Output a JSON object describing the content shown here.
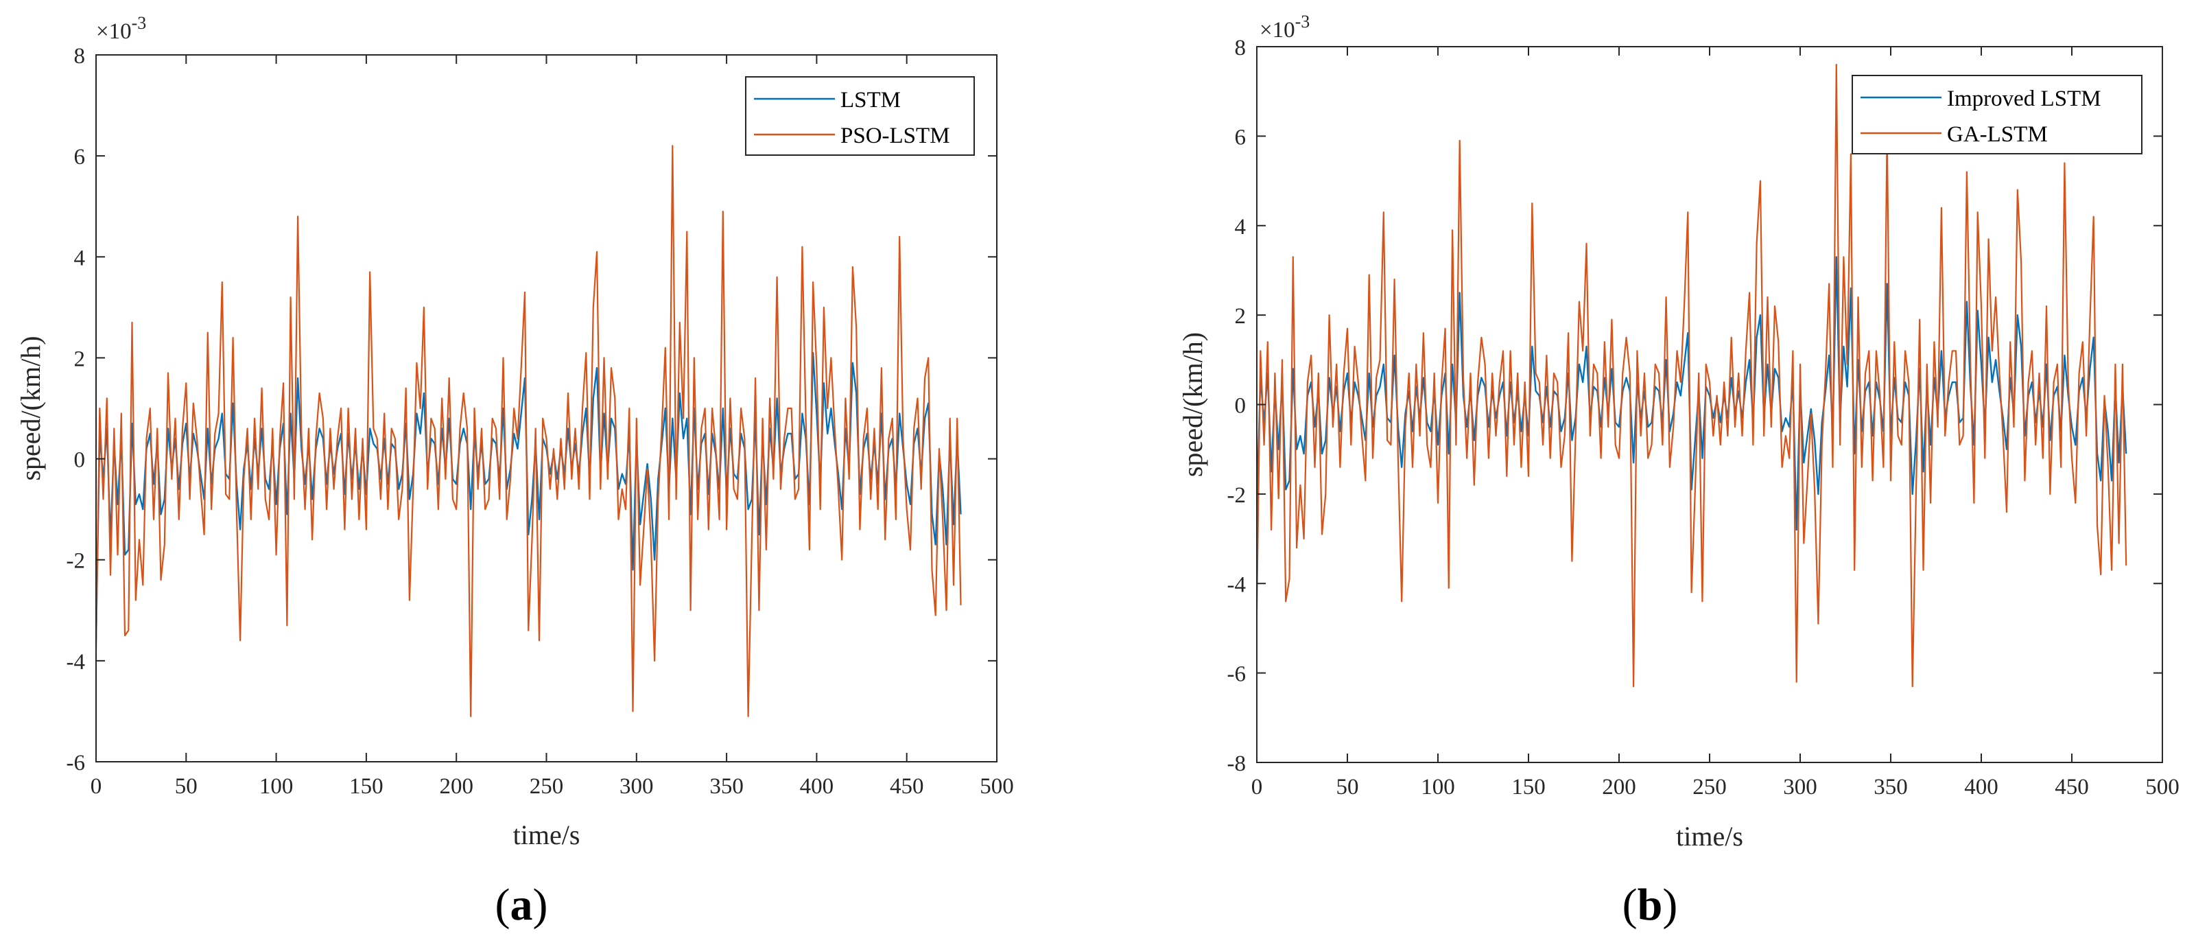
{
  "colors": {
    "series1": "#0072BD",
    "series2": "#D95319",
    "axis": "#262626"
  },
  "chart_data": [
    {
      "type": "line",
      "panel_label": "a",
      "xlabel": "time/s",
      "ylabel": "speed/(km/h)",
      "y_multiplier": "×10",
      "y_multiplier_exp": "-3",
      "xlim": [
        0,
        500
      ],
      "ylim": [
        -6,
        8
      ],
      "xticks": [
        0,
        50,
        100,
        150,
        200,
        250,
        300,
        350,
        400,
        450,
        500
      ],
      "xtick_labels": [
        "0",
        "50",
        "100",
        "150",
        "200",
        "250",
        "300",
        "350",
        "400",
        "450",
        "500"
      ],
      "yticks": [
        -6,
        -4,
        -2,
        0,
        2,
        4,
        6,
        8
      ],
      "ytick_labels": [
        "-6",
        "-4",
        "-2",
        "0",
        "2",
        "4",
        "6",
        "8"
      ],
      "legend": "top-right",
      "series": [
        {
          "name": "LSTM",
          "color": "#0072BD",
          "x_step": 2,
          "x_start": 0,
          "values": [
            -3.6,
            0.5,
            -0.4,
            0.6,
            -1.6,
            0.3,
            -0.9,
            0.4,
            -1.9,
            -1.8,
            0.7,
            -0.9,
            -0.7,
            -1.0,
            0.2,
            0.5,
            -0.5,
            0.3,
            -1.1,
            -0.8,
            0.6,
            -0.2,
            0.4,
            -0.6,
            0.3,
            0.7,
            -0.4,
            0.5,
            0.2,
            -0.3,
            -0.8,
            0.6,
            -0.5,
            0.2,
            0.4,
            0.9,
            -0.3,
            -0.4,
            1.1,
            -0.5,
            -1.4,
            -0.2,
            0.3,
            -0.6,
            0.4,
            -0.3,
            0.6,
            -0.4,
            -0.6,
            0.3,
            -0.9,
            0.2,
            0.7,
            -1.1,
            0.9,
            -0.4,
            1.6,
            0.2,
            -0.5,
            0.3,
            -0.8,
            0.2,
            0.6,
            0.4,
            -0.5,
            0.3,
            -0.3,
            0.2,
            0.5,
            -0.7,
            0.5,
            -0.4,
            0.3,
            -0.6,
            0.2,
            -0.7,
            0.6,
            0.3,
            0.2,
            -0.4,
            0.4,
            -0.5,
            0.3,
            0.2,
            -0.6,
            -0.3,
            0.7,
            -0.8,
            -0.3,
            0.9,
            0.5,
            1.3,
            -0.3,
            0.4,
            0.3,
            -0.5,
            0.6,
            -0.2,
            0.8,
            -0.4,
            -0.5,
            0.3,
            0.6,
            0.3,
            -1.0,
            0.5,
            -0.3,
            0.3,
            -0.5,
            -0.4,
            0.4,
            0.3,
            -0.4,
            1.0,
            -0.6,
            -0.2,
            0.5,
            0.2,
            0.9,
            1.6,
            -1.5,
            -0.8,
            0.3,
            -1.2,
            0.4,
            0.2,
            -0.3,
            0.1,
            -0.4,
            0.2,
            -0.3,
            0.6,
            -0.2,
            0.3,
            -0.3,
            0.5,
            1.0,
            -0.4,
            1.2,
            1.8,
            -0.3,
            0.9,
            -0.2,
            0.8,
            0.6,
            -0.6,
            -0.3,
            -0.5,
            0.5,
            -2.2,
            0.4,
            -1.3,
            -0.7,
            -0.1,
            -0.8,
            -2.0,
            -0.4,
            0.3,
            1.0,
            -0.6,
            0.8,
            -0.4,
            1.3,
            0.4,
            0.8,
            -1.1,
            1.0,
            -0.6,
            0.3,
            0.5,
            -0.7,
            0.5,
            0.1,
            -0.6,
            1.0,
            -0.7,
            0.6,
            -0.3,
            -0.4,
            0.5,
            0.2,
            -1.0,
            -0.8,
            0.8,
            -1.5,
            0.4,
            -0.9,
            0.6,
            -0.2,
            1.2,
            -0.3,
            0.2,
            0.5,
            0.5,
            -0.4,
            -0.3,
            0.9,
            0.4,
            -0.9,
            2.1,
            0.9,
            -0.5,
            1.5,
            0.5,
            1.0,
            0.3,
            -0.3,
            -1.0,
            0.6,
            -0.2,
            1.9,
            1.3,
            -0.7,
            0.2,
            0.5,
            -0.4,
            0.3,
            -0.5,
            0.9,
            -0.8,
            0.2,
            0.4,
            -0.6,
            0.9,
            0.2,
            -0.5,
            -0.9,
            0.3,
            0.6,
            -0.3,
            0.8,
            1.1,
            -1.1,
            -1.7,
            0.1,
            -0.6,
            -1.7,
            0.4,
            -1.3,
            0.4,
            -1.1
          ]
        },
        {
          "name": "PSO-LSTM",
          "color": "#D95319",
          "x_step": 2,
          "x_start": 0,
          "values": [
            -3.8,
            1.0,
            -0.8,
            1.2,
            -2.3,
            0.6,
            -1.9,
            0.9,
            -3.5,
            -3.4,
            2.7,
            -2.8,
            -1.6,
            -2.5,
            0.4,
            1.0,
            -1.2,
            0.6,
            -2.4,
            -1.7,
            1.7,
            -0.4,
            0.8,
            -1.2,
            0.6,
            1.5,
            -0.8,
            1.1,
            0.4,
            -0.6,
            -1.5,
            2.5,
            -1.0,
            0.5,
            0.9,
            3.5,
            -0.7,
            -0.8,
            2.4,
            -1.0,
            -3.6,
            -0.4,
            0.6,
            -1.2,
            0.8,
            -0.6,
            1.4,
            -0.8,
            -1.2,
            0.6,
            -1.9,
            0.4,
            1.5,
            -3.3,
            3.2,
            -0.8,
            4.8,
            0.5,
            -1.0,
            0.6,
            -1.6,
            0.4,
            1.3,
            0.8,
            -1.0,
            0.6,
            -0.6,
            0.4,
            1.0,
            -1.4,
            1.0,
            -0.8,
            0.6,
            -1.2,
            0.4,
            -1.4,
            3.7,
            0.6,
            0.4,
            -0.8,
            0.9,
            -1.0,
            0.6,
            0.4,
            -1.2,
            -0.6,
            1.4,
            -2.8,
            -0.6,
            1.9,
            1.0,
            3.0,
            -0.6,
            0.8,
            0.6,
            -1.0,
            1.2,
            -0.4,
            1.6,
            -0.8,
            -1.0,
            0.6,
            1.3,
            0.6,
            -5.1,
            1.0,
            -0.6,
            0.6,
            -1.0,
            -0.8,
            0.8,
            0.6,
            -0.8,
            2.0,
            -1.2,
            -0.4,
            1.0,
            0.4,
            1.8,
            3.3,
            -3.4,
            -1.6,
            0.6,
            -3.6,
            0.8,
            0.4,
            -0.6,
            0.2,
            -0.8,
            0.4,
            -0.6,
            1.3,
            -0.4,
            0.6,
            -0.6,
            1.0,
            2.1,
            -0.8,
            3.0,
            4.1,
            -0.6,
            2.0,
            -0.4,
            1.8,
            1.2,
            -1.2,
            -0.6,
            -1.0,
            1.0,
            -5.0,
            0.8,
            -2.5,
            -1.4,
            -0.2,
            -1.6,
            -4.0,
            -0.8,
            0.6,
            2.2,
            -1.2,
            6.2,
            -0.8,
            2.7,
            0.8,
            4.5,
            -3.0,
            2.0,
            -1.2,
            0.6,
            1.0,
            -1.4,
            1.0,
            0.2,
            -1.2,
            4.9,
            -1.4,
            1.2,
            -0.6,
            -0.8,
            1.0,
            0.4,
            -5.1,
            -1.6,
            1.6,
            -3.0,
            0.8,
            -1.8,
            1.2,
            -0.4,
            3.6,
            -0.6,
            0.4,
            1.0,
            1.0,
            -0.8,
            -0.6,
            4.2,
            0.8,
            -1.8,
            3.5,
            1.8,
            -1.0,
            3.0,
            1.0,
            2.0,
            0.6,
            -0.6,
            -2.0,
            1.2,
            -0.4,
            3.8,
            2.6,
            -1.4,
            0.4,
            1.0,
            -0.8,
            0.6,
            -1.0,
            1.8,
            -1.6,
            0.4,
            0.8,
            -1.2,
            4.4,
            0.4,
            -1.0,
            -1.8,
            0.6,
            1.2,
            -0.6,
            1.6,
            2.0,
            -2.2,
            -3.1,
            0.2,
            -1.2,
            -3.0,
            0.8,
            -2.5,
            0.8,
            -2.9
          ]
        }
      ]
    },
    {
      "type": "line",
      "panel_label": "b",
      "xlabel": "time/s",
      "ylabel": "speed/(km/h)",
      "y_multiplier": "×10",
      "y_multiplier_exp": "-3",
      "xlim": [
        0,
        500
      ],
      "ylim": [
        -8,
        8
      ],
      "xticks": [
        0,
        50,
        100,
        150,
        200,
        250,
        300,
        350,
        400,
        450,
        500
      ],
      "xtick_labels": [
        "0",
        "50",
        "100",
        "150",
        "200",
        "250",
        "300",
        "350",
        "400",
        "450",
        "500"
      ],
      "yticks": [
        -8,
        -6,
        -4,
        -2,
        0,
        2,
        4,
        6,
        8
      ],
      "ytick_labels": [
        "-8",
        "-6",
        "-4",
        "-2",
        "0",
        "2",
        "4",
        "6",
        "8"
      ],
      "legend": "top-right",
      "series": [
        {
          "name": "Improved LSTM",
          "color": "#0072BD",
          "x_step": 2,
          "x_start": 0,
          "values": [
            -2.3,
            0.6,
            -0.4,
            0.7,
            -1.5,
            0.3,
            -1.0,
            0.5,
            -1.9,
            -1.7,
            0.8,
            -1.0,
            -0.7,
            -1.1,
            0.2,
            0.5,
            -0.5,
            0.3,
            -1.1,
            -0.8,
            0.6,
            -0.2,
            0.4,
            -0.6,
            0.3,
            0.7,
            -0.4,
            0.5,
            0.2,
            -0.3,
            -0.8,
            0.7,
            -0.5,
            0.2,
            0.4,
            0.9,
            -0.3,
            -0.4,
            1.1,
            -0.5,
            -1.4,
            -0.2,
            0.3,
            -0.6,
            0.4,
            -0.3,
            0.6,
            -0.4,
            -0.6,
            0.3,
            -0.9,
            0.2,
            0.7,
            -1.1,
            0.9,
            -0.4,
            2.5,
            0.2,
            -0.5,
            0.3,
            -0.8,
            0.2,
            0.6,
            0.4,
            -0.5,
            0.3,
            -0.3,
            0.2,
            0.5,
            -0.7,
            0.5,
            -0.4,
            0.3,
            -0.6,
            0.2,
            -0.7,
            1.3,
            0.3,
            0.2,
            -0.4,
            0.4,
            -0.5,
            0.3,
            0.2,
            -0.6,
            -0.3,
            0.7,
            -0.8,
            -0.3,
            0.9,
            0.5,
            1.3,
            -0.3,
            0.4,
            0.3,
            -0.5,
            0.6,
            -0.2,
            0.8,
            -0.4,
            -0.5,
            0.3,
            0.6,
            0.3,
            -1.3,
            0.5,
            -0.3,
            0.3,
            -0.5,
            -0.4,
            0.4,
            0.3,
            -0.4,
            1.0,
            -0.6,
            -0.2,
            0.5,
            0.2,
            0.9,
            1.6,
            -1.9,
            -0.8,
            0.3,
            -1.2,
            0.4,
            0.2,
            -0.3,
            0.1,
            -0.4,
            0.2,
            -0.3,
            0.6,
            -0.2,
            0.3,
            -0.3,
            0.5,
            1.0,
            -0.4,
            1.5,
            2.0,
            -0.3,
            0.9,
            -0.2,
            0.8,
            0.6,
            -0.6,
            -0.3,
            -0.5,
            0.5,
            -2.8,
            0.4,
            -1.3,
            -0.7,
            -0.1,
            -0.8,
            -2.0,
            -0.4,
            0.3,
            1.1,
            -0.6,
            3.3,
            -0.4,
            1.3,
            0.4,
            2.6,
            -1.1,
            1.0,
            -0.6,
            0.3,
            0.5,
            -0.7,
            0.5,
            0.1,
            -0.6,
            2.7,
            -0.7,
            0.6,
            -0.3,
            -0.4,
            0.5,
            0.2,
            -2.0,
            -0.8,
            0.8,
            -1.5,
            0.4,
            -0.9,
            0.6,
            -0.2,
            1.2,
            -0.3,
            0.2,
            0.5,
            0.5,
            -0.4,
            -0.3,
            2.3,
            0.4,
            -0.9,
            2.1,
            0.9,
            -0.5,
            1.5,
            0.5,
            1.0,
            0.3,
            -0.3,
            -1.0,
            0.6,
            -0.2,
            2.0,
            1.3,
            -0.7,
            0.2,
            0.5,
            -0.4,
            0.3,
            -0.5,
            0.9,
            -0.8,
            0.2,
            0.4,
            -0.6,
            1.1,
            0.2,
            -0.5,
            -0.9,
            0.3,
            0.6,
            -0.3,
            0.8,
            1.5,
            -1.1,
            -1.7,
            0.1,
            -0.6,
            -1.7,
            0.4,
            -1.3,
            0.4,
            -1.1
          ]
        },
        {
          "name": "GA-LSTM",
          "color": "#D95319",
          "x_step": 2,
          "x_start": 0,
          "values": [
            -4.6,
            1.2,
            -0.9,
            1.4,
            -2.8,
            0.7,
            -2.1,
            1.0,
            -4.4,
            -3.9,
            3.3,
            -3.2,
            -1.8,
            -3.0,
            0.5,
            1.1,
            -1.4,
            0.7,
            -2.9,
            -2.0,
            2.0,
            -0.5,
            0.9,
            -1.4,
            0.7,
            1.7,
            -0.9,
            1.3,
            0.5,
            -0.7,
            -1.7,
            2.9,
            -1.2,
            0.6,
            1.0,
            4.3,
            -0.8,
            -0.9,
            2.8,
            -1.2,
            -4.4,
            -0.5,
            0.7,
            -1.4,
            0.9,
            -0.7,
            1.6,
            -0.9,
            -1.4,
            0.7,
            -2.2,
            0.5,
            1.7,
            -4.1,
            3.9,
            -0.9,
            5.9,
            0.6,
            -1.2,
            0.7,
            -1.8,
            0.5,
            1.5,
            0.9,
            -1.2,
            0.7,
            -0.7,
            0.5,
            1.2,
            -1.6,
            1.2,
            -0.9,
            0.7,
            -1.4,
            0.5,
            -1.6,
            4.5,
            0.7,
            0.5,
            -0.9,
            1.1,
            -1.2,
            0.7,
            0.5,
            -1.4,
            -0.7,
            1.6,
            -3.5,
            -0.7,
            2.3,
            1.2,
            3.6,
            -0.7,
            0.9,
            0.7,
            -1.2,
            1.4,
            -0.5,
            1.9,
            -0.9,
            -1.2,
            0.7,
            1.5,
            0.7,
            -6.3,
            1.2,
            -0.7,
            0.7,
            -1.2,
            -0.9,
            0.9,
            0.7,
            -0.9,
            2.4,
            -1.4,
            -0.5,
            1.2,
            0.5,
            2.2,
            4.3,
            -4.2,
            -1.9,
            0.7,
            -4.4,
            0.9,
            0.5,
            -0.7,
            0.2,
            -0.9,
            0.5,
            -0.7,
            1.5,
            -0.5,
            0.7,
            -0.7,
            1.2,
            2.5,
            -0.9,
            3.6,
            5.0,
            -0.7,
            2.4,
            -0.5,
            2.2,
            1.4,
            -1.4,
            -0.7,
            -1.2,
            1.2,
            -6.2,
            0.9,
            -3.1,
            -1.7,
            -0.2,
            -1.9,
            -4.9,
            -0.9,
            0.7,
            2.7,
            -1.4,
            7.6,
            -0.9,
            3.3,
            0.9,
            5.6,
            -3.7,
            2.4,
            -1.4,
            0.7,
            1.2,
            -1.7,
            1.2,
            0.2,
            -1.4,
            6.1,
            -1.7,
            1.4,
            -0.7,
            -0.9,
            1.2,
            0.5,
            -6.3,
            -1.9,
            1.9,
            -3.7,
            0.9,
            -2.2,
            1.4,
            -0.5,
            4.4,
            -0.7,
            0.5,
            1.2,
            1.2,
            -0.9,
            -0.7,
            5.2,
            0.9,
            -2.2,
            4.3,
            2.2,
            -1.2,
            3.7,
            1.2,
            2.4,
            0.7,
            -0.7,
            -2.4,
            1.4,
            -0.5,
            4.8,
            3.2,
            -1.7,
            0.5,
            1.2,
            -0.9,
            0.7,
            -1.2,
            2.2,
            -2.0,
            0.5,
            0.9,
            -1.4,
            5.4,
            0.5,
            -1.2,
            -2.2,
            0.7,
            1.4,
            -0.7,
            1.9,
            4.2,
            -2.7,
            -3.8,
            0.2,
            -1.4,
            -3.7,
            0.9,
            -3.1,
            0.9,
            -3.6
          ]
        }
      ]
    }
  ]
}
